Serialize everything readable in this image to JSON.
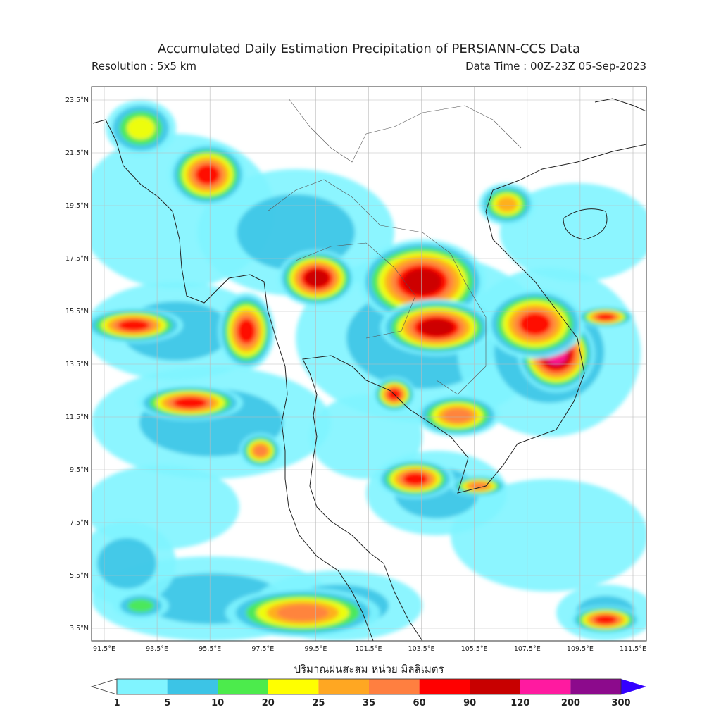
{
  "header": {
    "title": "Accumulated Daily Estimation Precipitation of PERSIANN-CCS Data",
    "resolution": "Resolution : 5x5 km",
    "data_time": "Data Time : 00Z-23Z 05-Sep-2023"
  },
  "map": {
    "lat_labels": [
      "23.5°N",
      "21.5°N",
      "19.5°N",
      "17.5°N",
      "15.5°N",
      "13.5°N",
      "11.5°N",
      "9.5°N",
      "7.5°N",
      "5.5°N",
      "3.5°N"
    ],
    "lon_labels": [
      "91.5°E",
      "93.5°E",
      "95.5°E",
      "97.5°E",
      "99.5°E",
      "101.5°E",
      "103.5°E",
      "105.5°E",
      "107.5°E",
      "109.5°E",
      "111.5°E"
    ]
  },
  "colorbar": {
    "label": "ปริมาณฝนสะสม หน่วย มิลลิเมตร",
    "ticks": [
      1,
      5,
      10,
      20,
      25,
      35,
      60,
      90,
      120,
      200,
      300
    ],
    "colors": [
      "#80f4ff",
      "#3cc4e6",
      "#4ceb4c",
      "#ffff00",
      "#ffa722",
      "#ff7f40",
      "#ff0000",
      "#c80000",
      "#ff1aa0",
      "#8c0a8c"
    ],
    "under_color": "#ffffff",
    "over_color": "#3300ff"
  }
}
